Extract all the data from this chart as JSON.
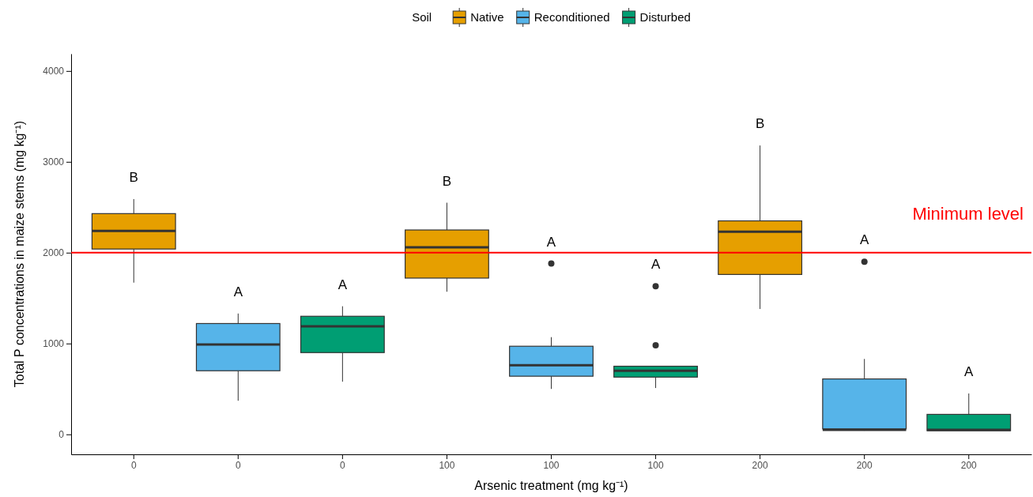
{
  "chart_data": {
    "type": "box",
    "xlabel": "Arsenic treatment (mg kg⁻¹)",
    "ylabel": "Total P concentrations in maize stems (mg kg⁻¹)",
    "legend_title": "Soil",
    "legend": "top",
    "categories": [
      "0",
      "0",
      "0",
      "100",
      "100",
      "100",
      "200",
      "200",
      "200"
    ],
    "ylim": [
      -220,
      4190
    ],
    "yticks": [
      0,
      1000,
      2000,
      3000,
      4000
    ],
    "series": [
      {
        "name": "Native",
        "color": "#e69f00",
        "boxes": [
          {
            "low": 1670,
            "q1": 2040,
            "median": 2240,
            "q3": 2430,
            "high": 2590
          },
          null,
          null,
          {
            "low": 1570,
            "q1": 1720,
            "median": 2060,
            "q3": 2250,
            "high": 2550
          },
          null,
          null,
          {
            "low": 1380,
            "q1": 1760,
            "median": 2230,
            "q3": 2350,
            "high": 3180
          },
          null,
          null
        ]
      },
      {
        "name": "Reconditioned",
        "color": "#56b4e9",
        "boxes": [
          null,
          {
            "low": 370,
            "q1": 700,
            "median": 990,
            "q3": 1220,
            "high": 1330
          },
          null,
          null,
          {
            "low": 500,
            "q1": 640,
            "median": 760,
            "q3": 970,
            "high": 1070,
            "outliers": [
              1880
            ]
          },
          null,
          null,
          {
            "low": 40,
            "q1": 60,
            "median": 50,
            "q3": 610,
            "high": 830,
            "outliers": [
              1900
            ]
          },
          null
        ]
      },
      {
        "name": "Disturbed",
        "color": "#009e73",
        "boxes": [
          null,
          null,
          {
            "low": 580,
            "q1": 900,
            "median": 1190,
            "q3": 1300,
            "high": 1410
          },
          null,
          null,
          {
            "low": 510,
            "q1": 630,
            "median": 700,
            "q3": 750,
            "high": 750,
            "outliers": [
              980,
              1630
            ]
          },
          null,
          null,
          {
            "low": 40,
            "q1": 40,
            "median": 50,
            "q3": 220,
            "high": 450
          }
        ]
      }
    ],
    "annotations": [
      "B",
      "A",
      "A",
      "B",
      "A",
      "A",
      "B",
      "A",
      "A"
    ],
    "ref_lines": [
      {
        "axis": "y",
        "value": 2000,
        "label": "Minimum level",
        "color": "#ff0000"
      }
    ]
  }
}
